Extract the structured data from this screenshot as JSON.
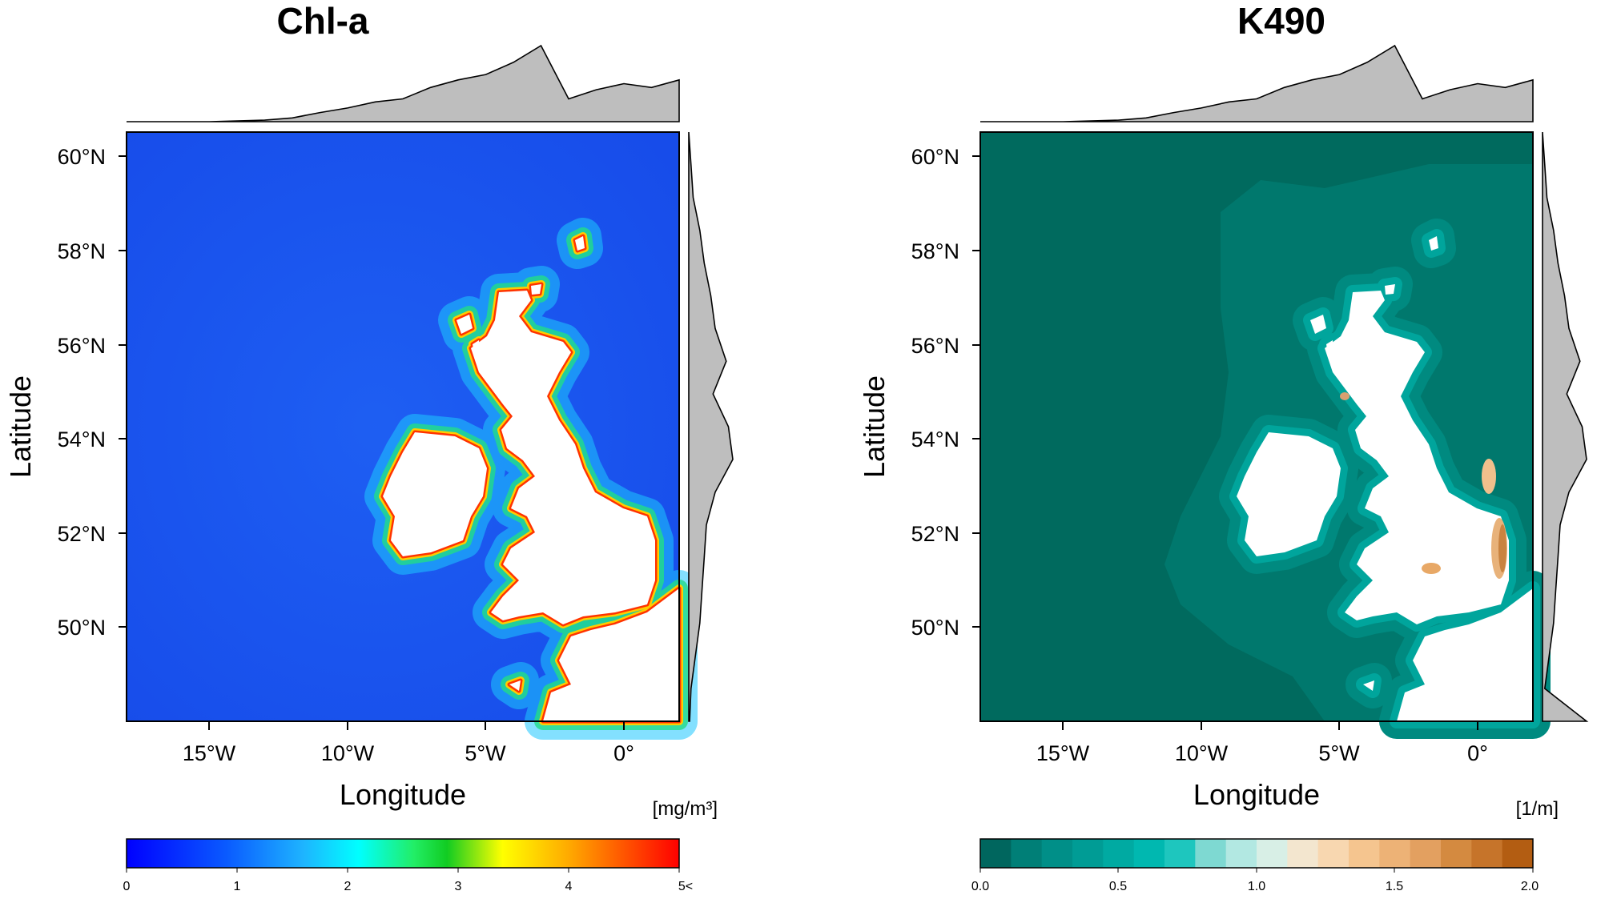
{
  "panels": [
    {
      "id": "chl",
      "title": "Chl-a",
      "xlabel": "Longitude",
      "ylabel": "Latitude",
      "xticks": [
        "15°W",
        "10°W",
        "5°W",
        "0°"
      ],
      "yticks": [
        "60°N",
        "58°N",
        "56°N",
        "54°N",
        "52°N",
        "50°N"
      ],
      "unit": "[mg/m³]",
      "colorbar": {
        "ticks": [
          "0",
          "1",
          "2",
          "3",
          "4",
          "5<"
        ],
        "colors": [
          "#0000ff",
          "#0a5aff",
          "#1eb4ff",
          "#00ffff",
          "#22ee66",
          "#11cc22",
          "#ffff00",
          "#ffaa00",
          "#ff5500",
          "#ff0000"
        ]
      },
      "sea_color": "#1e55ec",
      "coast_colors": [
        "#1ec8ff",
        "#22dd88",
        "#ffcc00",
        "#ff3300"
      ]
    },
    {
      "id": "k490",
      "title": "K490",
      "xlabel": "Longitude",
      "ylabel": "Latitude",
      "xticks": [
        "15°W",
        "10°W",
        "5°W",
        "0°"
      ],
      "yticks": [
        "60°N",
        "58°N",
        "56°N",
        "54°N",
        "52°N",
        "50°N"
      ],
      "unit": "[1/m]",
      "colorbar": {
        "ticks": [
          "0.0",
          "0.5",
          "1.0",
          "1.5",
          "2.0"
        ],
        "colors": [
          "#00665e",
          "#007f77",
          "#008f88",
          "#009c95",
          "#00aaa2",
          "#00b8b0",
          "#1ec6be",
          "#7ed9d2",
          "#b2e8e2",
          "#d8efe6",
          "#f3e6cf",
          "#f8d7b0",
          "#f5c58f",
          "#edb276",
          "#e3a060",
          "#d48a40",
          "#c6742a",
          "#b35d12"
        ]
      },
      "sea_color": "#006a5e",
      "coast_colors": [
        "#00887d",
        "#00a59c",
        "#e8b27a",
        "#c98340"
      ]
    }
  ],
  "chart_data": [
    {
      "type": "heatmap",
      "title": "Chl-a",
      "xlabel": "Longitude",
      "ylabel": "Latitude",
      "xlim": [
        -18,
        2
      ],
      "ylim": [
        48,
        60.5
      ],
      "xticks": [
        -15,
        -10,
        -5,
        0
      ],
      "yticks": [
        60,
        58,
        56,
        54,
        52,
        50
      ],
      "colorbar_range": [
        0,
        5
      ],
      "unit": "[mg/m³]",
      "marginal_longitude_density": [
        0,
        0,
        0,
        0,
        0.01,
        0.02,
        0.05,
        0.12,
        0.18,
        0.26,
        0.3,
        0.45,
        0.55,
        0.62,
        0.78,
        1.0,
        0.3,
        0.42,
        0.5,
        0.45,
        0.55
      ],
      "marginal_latitude_density": [
        0,
        0.05,
        0.1,
        0.25,
        0.35,
        0.5,
        0.6,
        0.85,
        0.55,
        0.9,
        1.0,
        0.6,
        0.4,
        0.35,
        0.3,
        0.25,
        0.15,
        0.05,
        0.02
      ]
    },
    {
      "type": "heatmap",
      "title": "K490",
      "xlabel": "Longitude",
      "ylabel": "Latitude",
      "xlim": [
        -18,
        2
      ],
      "ylim": [
        48,
        60.5
      ],
      "xticks": [
        -15,
        -10,
        -5,
        0
      ],
      "yticks": [
        60,
        58,
        56,
        54,
        52,
        50
      ],
      "colorbar_range": [
        0,
        2
      ],
      "unit": "[1/m]",
      "marginal_longitude_density": [
        0,
        0,
        0,
        0,
        0.01,
        0.02,
        0.05,
        0.12,
        0.18,
        0.26,
        0.3,
        0.45,
        0.55,
        0.62,
        0.78,
        1.0,
        0.3,
        0.42,
        0.5,
        0.45,
        0.55
      ],
      "marginal_latitude_density": [
        0,
        0.05,
        0.1,
        0.25,
        0.35,
        0.5,
        0.6,
        0.85,
        0.55,
        0.9,
        1.0,
        0.6,
        0.4,
        0.35,
        0.3,
        0.25,
        0.15,
        0.05,
        1.0
      ]
    }
  ]
}
